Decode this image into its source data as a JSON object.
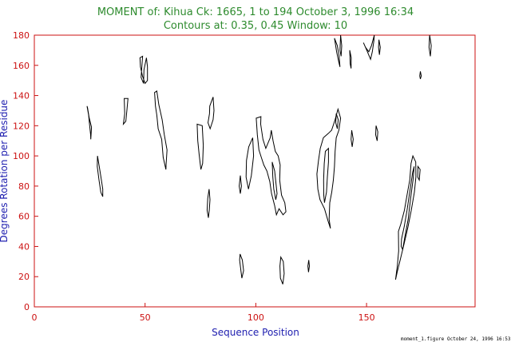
{
  "chart_data": {
    "type": "contour",
    "title": "MOMENT of: Kihua  Ck: 1665,  1 to 194  October 3, 1996 16:34",
    "subtitle": "Contours at: 0.35, 0.45  Window: 10",
    "xlabel": "Sequence Position",
    "ylabel": "Degrees Rotation per Residue",
    "xlim": [
      0,
      199
    ],
    "ylim": [
      0,
      180
    ],
    "x_ticks": [
      0,
      50,
      100,
      150
    ],
    "y_ticks": [
      0,
      20,
      40,
      60,
      80,
      100,
      120,
      140,
      160,
      180
    ],
    "contour_levels": [
      0.35,
      0.45
    ],
    "grid": false,
    "contours": [
      {
        "points": [
          [
            23.8,
            133
          ],
          [
            24.5,
            127
          ],
          [
            25.0,
            120
          ],
          [
            25.4,
            114
          ],
          [
            25.5,
            111
          ],
          [
            25.8,
            119
          ],
          [
            24.8,
            125
          ],
          [
            24.0,
            132
          ]
        ]
      },
      {
        "points": [
          [
            28.5,
            100
          ],
          [
            29.4,
            92
          ],
          [
            30.3,
            84
          ],
          [
            30.9,
            78
          ],
          [
            30.9,
            73
          ],
          [
            30.0,
            76
          ],
          [
            29.2,
            84
          ],
          [
            28.4,
            93
          ]
        ]
      },
      {
        "points": [
          [
            40.6,
            138
          ],
          [
            42.3,
            138
          ],
          [
            41.8,
            130
          ],
          [
            41.3,
            123
          ],
          [
            40.2,
            121
          ],
          [
            40.8,
            128
          ]
        ]
      },
      {
        "points": [
          [
            47.7,
            165
          ],
          [
            48.9,
            166
          ],
          [
            48.5,
            158
          ],
          [
            48.2,
            152
          ],
          [
            49.3,
            148
          ],
          [
            49.5,
            157
          ],
          [
            50.6,
            165
          ],
          [
            51.1,
            159
          ],
          [
            51.1,
            150
          ],
          [
            50.0,
            148
          ],
          [
            48.8,
            153
          ],
          [
            47.9,
            159
          ]
        ]
      },
      {
        "points": [
          [
            54.3,
            142
          ],
          [
            55.3,
            143
          ],
          [
            56.2,
            134
          ],
          [
            57.7,
            124
          ],
          [
            58.7,
            114
          ],
          [
            59.9,
            104
          ],
          [
            59.5,
            94
          ],
          [
            59.4,
            91
          ],
          [
            58.2,
            99
          ],
          [
            57.5,
            111
          ],
          [
            55.9,
            118
          ],
          [
            55.3,
            127
          ],
          [
            54.7,
            133
          ]
        ]
      },
      {
        "points": [
          [
            73.5,
            121
          ],
          [
            75.8,
            120
          ],
          [
            76.3,
            107
          ],
          [
            76.0,
            95
          ],
          [
            75.2,
            91
          ],
          [
            74.4,
            101
          ],
          [
            73.8,
            110
          ]
        ]
      },
      {
        "points": [
          [
            79.2,
            133
          ],
          [
            80.7,
            139
          ],
          [
            81.1,
            130
          ],
          [
            80.7,
            124
          ],
          [
            79.4,
            118
          ],
          [
            78.4,
            122
          ],
          [
            79.1,
            128
          ]
        ]
      },
      {
        "points": [
          [
            78.9,
            78
          ],
          [
            79.3,
            71
          ],
          [
            79.0,
            64
          ],
          [
            78.6,
            59
          ],
          [
            78.0,
            64
          ],
          [
            78.3,
            72
          ]
        ]
      },
      {
        "points": [
          [
            93.0,
            87
          ],
          [
            93.5,
            80
          ],
          [
            93.0,
            75
          ],
          [
            92.5,
            80
          ]
        ]
      },
      {
        "points": [
          [
            92.9,
            35
          ],
          [
            93.9,
            31
          ],
          [
            94.5,
            24
          ],
          [
            93.7,
            19
          ],
          [
            93.2,
            25
          ],
          [
            92.7,
            31
          ]
        ]
      },
      {
        "points": [
          [
            100.2,
            125
          ],
          [
            102.3,
            126
          ],
          [
            102.2,
            121
          ],
          [
            103.2,
            111
          ],
          [
            104.5,
            105
          ],
          [
            106.5,
            112
          ],
          [
            107.0,
            117
          ],
          [
            107.8,
            110
          ],
          [
            108.8,
            103
          ],
          [
            110.1,
            100
          ],
          [
            111.0,
            94
          ],
          [
            110.8,
            84
          ],
          [
            111.6,
            74
          ],
          [
            113.1,
            69
          ],
          [
            113.6,
            63
          ],
          [
            112.3,
            61
          ],
          [
            110.5,
            65
          ],
          [
            109.3,
            61
          ],
          [
            108.5,
            67
          ],
          [
            107.1,
            75
          ],
          [
            106.3,
            83
          ],
          [
            105.0,
            90
          ],
          [
            103.6,
            94
          ],
          [
            102.5,
            99
          ],
          [
            101.4,
            104
          ],
          [
            100.7,
            114
          ]
        ]
      },
      {
        "points": [
          [
            96.8,
            106
          ],
          [
            98.6,
            112
          ],
          [
            99.0,
            100
          ],
          [
            98.0,
            87
          ],
          [
            96.7,
            78
          ],
          [
            95.6,
            86
          ],
          [
            95.8,
            97
          ]
        ]
      },
      {
        "points": [
          [
            107.4,
            96
          ],
          [
            108.5,
            90
          ],
          [
            109.0,
            83
          ],
          [
            109.6,
            75
          ],
          [
            109.0,
            71
          ],
          [
            108.1,
            78
          ],
          [
            107.7,
            86
          ]
        ]
      },
      {
        "points": [
          [
            111.3,
            33
          ],
          [
            112.4,
            30
          ],
          [
            112.8,
            22
          ],
          [
            112.2,
            15
          ],
          [
            111.1,
            19
          ],
          [
            110.9,
            27
          ]
        ]
      },
      {
        "points": [
          [
            123.9,
            31
          ],
          [
            124.2,
            27
          ],
          [
            123.8,
            23
          ],
          [
            123.5,
            27
          ]
        ]
      },
      {
        "points": [
          [
            130.5,
            112
          ],
          [
            132.8,
            115
          ],
          [
            134.2,
            117
          ],
          [
            135.8,
            124
          ],
          [
            137.1,
            131
          ],
          [
            138.3,
            125
          ],
          [
            137.5,
            117
          ],
          [
            136.3,
            112
          ],
          [
            135.8,
            103
          ],
          [
            135.5,
            93
          ],
          [
            135.0,
            84
          ],
          [
            134.3,
            76
          ],
          [
            133.4,
            69
          ],
          [
            133.1,
            58
          ],
          [
            133.7,
            52
          ],
          [
            132.6,
            57
          ],
          [
            131.0,
            65
          ],
          [
            129.0,
            71
          ],
          [
            128.0,
            78
          ],
          [
            127.6,
            88
          ],
          [
            128.3,
            97
          ],
          [
            129.1,
            105
          ]
        ]
      },
      {
        "points": [
          [
            131.4,
            103
          ],
          [
            132.8,
            105
          ],
          [
            132.8,
            96
          ],
          [
            132.3,
            86
          ],
          [
            131.9,
            76
          ],
          [
            131.0,
            69
          ],
          [
            130.7,
            74
          ],
          [
            130.6,
            84
          ],
          [
            130.9,
            95
          ]
        ]
      },
      {
        "points": [
          [
            135.5,
            178
          ],
          [
            136.5,
            169
          ],
          [
            137.5,
            162
          ],
          [
            138.0,
            159
          ],
          [
            137.6,
            166
          ],
          [
            136.8,
            173
          ]
        ]
      },
      {
        "points": [
          [
            138.3,
            180
          ],
          [
            138.8,
            173
          ],
          [
            138.5,
            166
          ],
          [
            138.0,
            170
          ]
        ]
      },
      {
        "points": [
          [
            136.3,
            128
          ],
          [
            137.2,
            124
          ],
          [
            136.8,
            118
          ],
          [
            136.1,
            122
          ]
        ]
      },
      {
        "points": [
          [
            142.4,
            170
          ],
          [
            143.1,
            165
          ],
          [
            143.0,
            158
          ],
          [
            142.6,
            161
          ]
        ]
      },
      {
        "points": [
          [
            143.3,
            117
          ],
          [
            144.0,
            111
          ],
          [
            143.5,
            106
          ],
          [
            143.0,
            111
          ]
        ]
      },
      {
        "points": [
          [
            148.6,
            175
          ],
          [
            150.1,
            170
          ],
          [
            151.8,
            164
          ],
          [
            152.6,
            169
          ],
          [
            153.3,
            176
          ],
          [
            153.5,
            180
          ],
          [
            152.2,
            173
          ],
          [
            151.0,
            169
          ],
          [
            149.5,
            172
          ]
        ]
      },
      {
        "points": [
          [
            155.6,
            177
          ],
          [
            156.2,
            172
          ],
          [
            155.8,
            167
          ],
          [
            155.4,
            172
          ]
        ]
      },
      {
        "points": [
          [
            154.3,
            120
          ],
          [
            155.1,
            116
          ],
          [
            154.8,
            110
          ],
          [
            154.1,
            114
          ]
        ]
      },
      {
        "points": [
          [
            164.4,
            50
          ],
          [
            165.5,
            55
          ],
          [
            167.1,
            64
          ],
          [
            168.4,
            75
          ],
          [
            169.5,
            84
          ],
          [
            170.1,
            95
          ],
          [
            170.9,
            100
          ],
          [
            172.2,
            96
          ],
          [
            172.3,
            86
          ],
          [
            171.6,
            76
          ],
          [
            170.2,
            64
          ],
          [
            168.7,
            53
          ],
          [
            167.0,
            42
          ],
          [
            165.2,
            31
          ],
          [
            164.0,
            24
          ],
          [
            163.1,
            18
          ],
          [
            163.9,
            27
          ],
          [
            164.5,
            37
          ]
        ]
      },
      {
        "points": [
          [
            165.8,
            45
          ],
          [
            167.0,
            53
          ],
          [
            168.3,
            64
          ],
          [
            169.7,
            78
          ],
          [
            170.8,
            89
          ],
          [
            171.5,
            93
          ],
          [
            171.0,
            84
          ],
          [
            169.9,
            72
          ],
          [
            168.8,
            58
          ],
          [
            167.4,
            47
          ],
          [
            166.3,
            38
          ],
          [
            165.6,
            40
          ]
        ]
      },
      {
        "points": [
          [
            173.2,
            93
          ],
          [
            174.2,
            91
          ],
          [
            173.8,
            84
          ],
          [
            173.1,
            86
          ]
        ]
      },
      {
        "points": [
          [
            178.5,
            180
          ],
          [
            179.2,
            173
          ],
          [
            178.8,
            166
          ],
          [
            178.2,
            172
          ]
        ]
      },
      {
        "points": [
          [
            174.3,
            156
          ],
          [
            174.7,
            153
          ],
          [
            174.3,
            151
          ],
          [
            174.0,
            153
          ]
        ]
      }
    ]
  },
  "footer": {
    "left_text": "moment_1.figure",
    "right_text": "October 24, 1996  16:53"
  }
}
